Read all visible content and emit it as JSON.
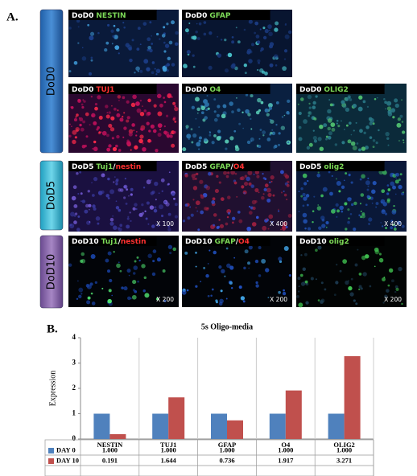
{
  "panel_a": {
    "label": "A.",
    "rows": [
      {
        "label": "DoD0",
        "tiles": [
          {
            "parts": [
              {
                "text": "DoD0",
                "color": "#ffffff"
              },
              {
                "text": "NESTIN",
                "color": "#7cd957"
              }
            ]
          },
          {
            "parts": [
              {
                "text": "DoD0",
                "color": "#ffffff"
              },
              {
                "text": "GFAP",
                "color": "#7cd957"
              }
            ]
          },
          {
            "parts": [
              {
                "text": "DoD0",
                "color": "#ffffff"
              },
              {
                "text": "TUJ1",
                "color": "#ff3030"
              }
            ]
          },
          {
            "parts": [
              {
                "text": "DoD0",
                "color": "#ffffff"
              },
              {
                "text": "O4",
                "color": "#7cd957"
              }
            ]
          },
          {
            "parts": [
              {
                "text": "DoD0",
                "color": "#ffffff"
              },
              {
                "text": "OLIG2",
                "color": "#7cd957"
              }
            ]
          }
        ]
      },
      {
        "label": "DoD5",
        "tiles": [
          {
            "parts": [
              {
                "text": "DoD5",
                "color": "#ffffff"
              },
              {
                "text": "Tuj1",
                "color": "#7cd957"
              },
              {
                "text": "/",
                "color": "#ffffff"
              },
              {
                "text": "nestin",
                "color": "#ff3030"
              }
            ],
            "magnification": "X 100"
          },
          {
            "parts": [
              {
                "text": "DoD5",
                "color": "#ffffff"
              },
              {
                "text": "GFAP",
                "color": "#7cd957"
              },
              {
                "text": "/",
                "color": "#ffffff"
              },
              {
                "text": "O4",
                "color": "#ff3030"
              }
            ],
            "magnification": "X 400"
          },
          {
            "parts": [
              {
                "text": "DoD5",
                "color": "#ffffff"
              },
              {
                "text": "olig2",
                "color": "#7cd957"
              }
            ],
            "magnification": "X 400"
          }
        ]
      },
      {
        "label": "DoD10",
        "tiles": [
          {
            "parts": [
              {
                "text": "DoD10",
                "color": "#ffffff"
              },
              {
                "text": "Tuj1",
                "color": "#7cd957"
              },
              {
                "text": "/",
                "color": "#ffffff"
              },
              {
                "text": "nestin",
                "color": "#ff3030"
              }
            ],
            "magnification": "X 200"
          },
          {
            "parts": [
              {
                "text": "DoD10",
                "color": "#ffffff"
              },
              {
                "text": "GFAP",
                "color": "#7cd957"
              },
              {
                "text": "/",
                "color": "#ffffff"
              },
              {
                "text": "O4",
                "color": "#ff3030"
              }
            ],
            "magnification": "X 200"
          },
          {
            "parts": [
              {
                "text": "DoD10",
                "color": "#ffffff"
              },
              {
                "text": "olig2",
                "color": "#7cd957"
              }
            ],
            "magnification": "X 200"
          }
        ]
      }
    ]
  },
  "panel_b_label": "B.",
  "chart_data": {
    "type": "bar",
    "title": "5s Oligo-media",
    "y_label": "Expression",
    "categories": [
      "NESTIN",
      "TUJ1",
      "GFAP",
      "O4",
      "OLIG2"
    ],
    "series": [
      {
        "name": "DAY 0",
        "color": "#4f81bd",
        "values": [
          1,
          1,
          1,
          1,
          1
        ],
        "value_labels": [
          "1.000",
          "1.000",
          "1.000",
          "1.000",
          "1.000"
        ]
      },
      {
        "name": "DAY 10",
        "color": "#c0504d",
        "values": [
          0.191,
          1.644,
          0.736,
          1.917,
          3.271
        ]
      }
    ],
    "ylim": [
      0,
      4
    ],
    "yticks": [
      0,
      1,
      2,
      3,
      4
    ],
    "grid": false,
    "data_table": true
  }
}
